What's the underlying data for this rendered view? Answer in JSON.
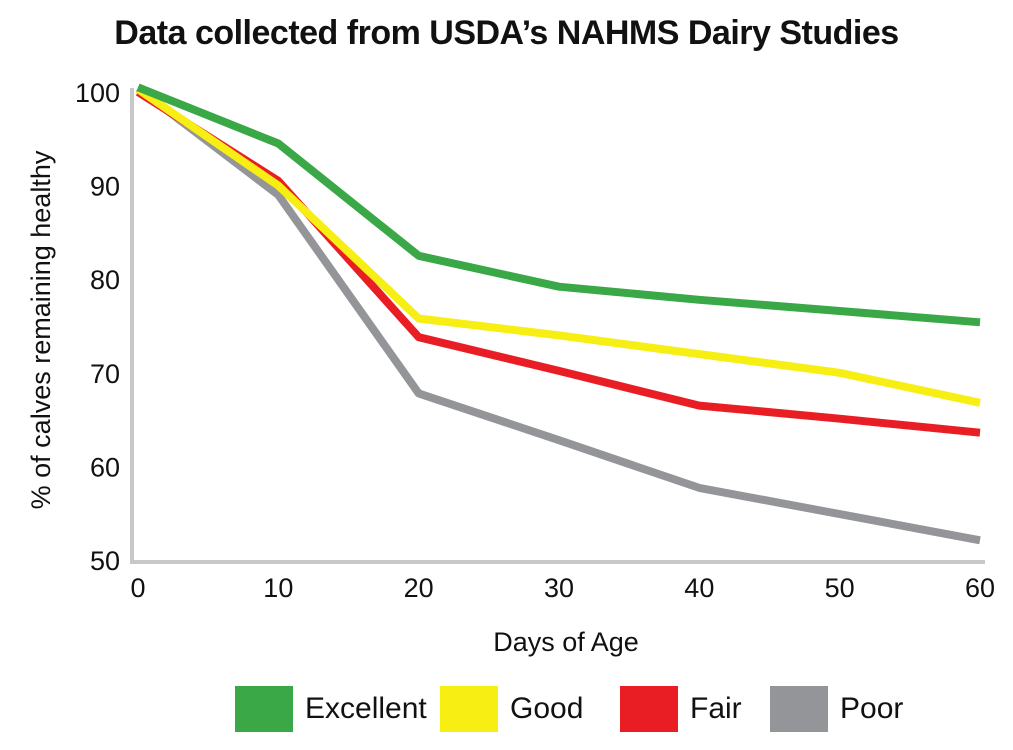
{
  "chart_data": {
    "type": "line",
    "title": "Data collected from USDA’s NAHMS Dairy Studies",
    "xlabel": "Days of Age",
    "ylabel": "% of calves remaining healthy",
    "xlim": [
      0,
      60
    ],
    "ylim": [
      50,
      100
    ],
    "x_ticks": [
      "0",
      "10",
      "20",
      "30",
      "40",
      "50",
      "60"
    ],
    "y_ticks": [
      "50",
      "60",
      "70",
      "80",
      "90",
      "100"
    ],
    "grid": false,
    "legend_position": "bottom",
    "x": [
      0,
      10,
      20,
      30,
      40,
      50,
      60
    ],
    "series": [
      {
        "name": "Excellent",
        "color": "#3aa847",
        "values": [
          100.5,
          94.5,
          82.5,
          79.2,
          77.8,
          76.6,
          75.4
        ]
      },
      {
        "name": "Good",
        "color": "#f7ee14",
        "values": [
          100.3,
          90.0,
          75.8,
          74.0,
          72.0,
          70.0,
          66.8
        ]
      },
      {
        "name": "Fair",
        "color": "#e91e25",
        "values": [
          100.0,
          90.5,
          73.8,
          70.2,
          66.5,
          65.1,
          63.6
        ]
      },
      {
        "name": "Poor",
        "color": "#949599",
        "values": [
          100.4,
          89.0,
          67.8,
          62.8,
          57.7,
          54.9,
          52.1
        ]
      }
    ]
  }
}
